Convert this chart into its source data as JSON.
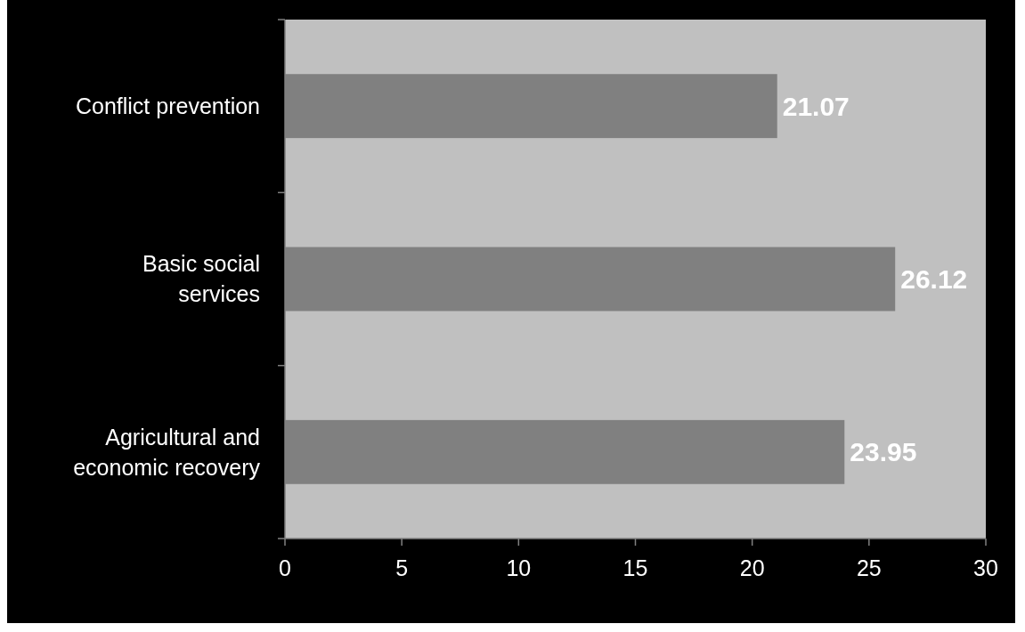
{
  "chart_data": {
    "type": "bar",
    "orientation": "horizontal",
    "categories": [
      "Conflict prevention",
      "Basic social\nservices",
      "Agricultural and\neconomic recovery"
    ],
    "values": [
      21.07,
      26.12,
      23.95
    ],
    "color": "#808080",
    "xlim": [
      0,
      30
    ],
    "xticks": [
      0,
      5,
      10,
      15,
      20,
      25,
      30
    ],
    "data_labels": true,
    "grid": false
  }
}
